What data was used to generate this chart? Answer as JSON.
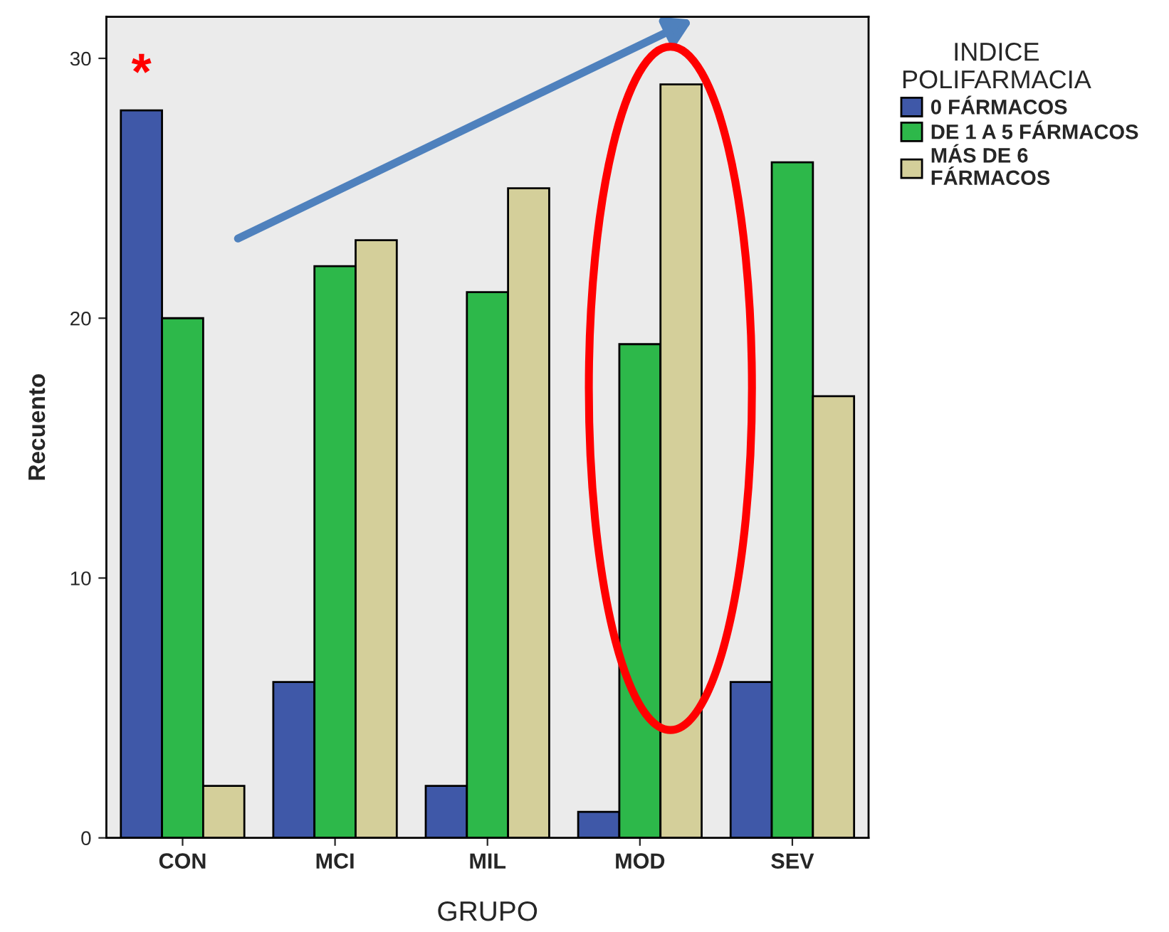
{
  "chart_data": {
    "type": "bar",
    "xlabel": "GRUPO",
    "ylabel": "Recuento",
    "legend_title": "INDICE\nPOLIFARMACIA",
    "categories": [
      "CON",
      "MCI",
      "MIL",
      "MOD",
      "SEV"
    ],
    "series": [
      {
        "name": "0 FÁRMACOS",
        "color": "#3f58a8",
        "values": [
          28,
          6,
          2,
          1,
          6
        ]
      },
      {
        "name": "DE 1 A 5 FÁRMACOS",
        "color": "#2db84a",
        "values": [
          20,
          22,
          21,
          19,
          26
        ]
      },
      {
        "name": "MÁS DE 6\nFÁRMACOS",
        "color": "#d4cf9a",
        "values": [
          2,
          23,
          25,
          29,
          17
        ]
      }
    ],
    "ylim": [
      0,
      31.6
    ],
    "yticks": [
      0,
      10,
      20,
      30
    ],
    "grid": false,
    "legend": "top right",
    "annotations": [
      "*"
    ]
  }
}
